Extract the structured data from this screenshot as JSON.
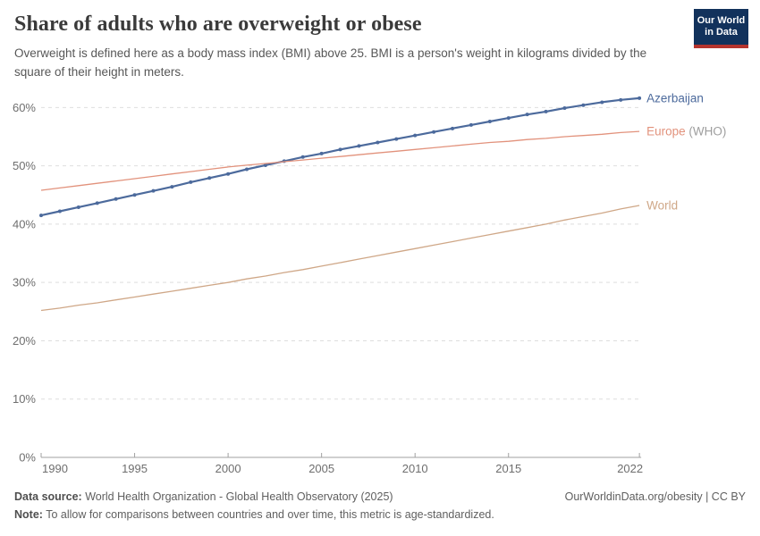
{
  "header": {
    "title": "Share of adults who are overweight or obese",
    "subtitle": "Overweight is defined here as a body mass index (BMI) above 25. BMI is a person's weight in kilograms divided by the square of their height in meters.",
    "logo": {
      "line1": "Our World",
      "line2": "in Data",
      "bg_color": "#12325c",
      "accent_color": "#b5342e"
    }
  },
  "chart_data": {
    "type": "line",
    "title": "Share of adults who are overweight or obese",
    "xlabel": "",
    "ylabel": "",
    "x_range": [
      1990,
      2022
    ],
    "ylim": [
      0,
      62
    ],
    "yticks": [
      0,
      10,
      20,
      30,
      40,
      50,
      60
    ],
    "ytick_suffix": "%",
    "xticks": [
      1990,
      1995,
      2000,
      2005,
      2010,
      2015,
      2022
    ],
    "grid": "horizontal-dashed",
    "legend_position": "right-end-labels",
    "x": [
      1990,
      1991,
      1992,
      1993,
      1994,
      1995,
      1996,
      1997,
      1998,
      1999,
      2000,
      2001,
      2002,
      2003,
      2004,
      2005,
      2006,
      2007,
      2008,
      2009,
      2010,
      2011,
      2012,
      2013,
      2014,
      2015,
      2016,
      2017,
      2018,
      2019,
      2020,
      2021,
      2022
    ],
    "series": [
      {
        "name": "Azerbaijan",
        "label": "Azerbaijan",
        "label_suffix": "",
        "color": "#4c6a9c",
        "markers": true,
        "line_width": 2.2,
        "values": [
          41.5,
          42.2,
          42.9,
          43.6,
          44.3,
          45.0,
          45.7,
          46.4,
          47.2,
          47.9,
          48.6,
          49.4,
          50.1,
          50.8,
          51.5,
          52.1,
          52.8,
          53.4,
          54.0,
          54.6,
          55.2,
          55.8,
          56.4,
          57.0,
          57.6,
          58.2,
          58.8,
          59.3,
          59.9,
          60.4,
          60.9,
          61.3,
          61.6
        ]
      },
      {
        "name": "Europe (WHO)",
        "label": "Europe",
        "label_suffix": " (WHO)",
        "color": "#e2927c",
        "markers": false,
        "line_width": 1.3,
        "values": [
          45.8,
          46.2,
          46.6,
          47.0,
          47.4,
          47.8,
          48.2,
          48.6,
          49.0,
          49.4,
          49.8,
          50.1,
          50.4,
          50.7,
          51.0,
          51.3,
          51.6,
          51.9,
          52.2,
          52.5,
          52.8,
          53.1,
          53.4,
          53.7,
          54.0,
          54.2,
          54.5,
          54.7,
          55.0,
          55.2,
          55.4,
          55.7,
          55.9
        ]
      },
      {
        "name": "World",
        "label": "World",
        "label_suffix": "",
        "color": "#cfa787",
        "markers": false,
        "line_width": 1.3,
        "values": [
          25.2,
          25.6,
          26.1,
          26.5,
          27.0,
          27.5,
          28.0,
          28.5,
          29.0,
          29.5,
          30.0,
          30.6,
          31.1,
          31.7,
          32.2,
          32.8,
          33.4,
          34.0,
          34.6,
          35.2,
          35.8,
          36.4,
          37.0,
          37.6,
          38.2,
          38.8,
          39.4,
          40.0,
          40.7,
          41.3,
          41.9,
          42.6,
          43.2
        ]
      }
    ],
    "colors": {
      "grid": "#dedede",
      "axis": "#a1a1a1",
      "tick_label": "#6e6e6e",
      "suffix_label": "#9e9e9e"
    }
  },
  "footer": {
    "source_label": "Data source:",
    "source_text": " World Health Organization - Global Health Observatory (2025)",
    "credit": "OurWorldinData.org/obesity | CC BY",
    "note_label": "Note:",
    "note_text": " To allow for comparisons between countries and over time, this metric is age-standardized."
  }
}
